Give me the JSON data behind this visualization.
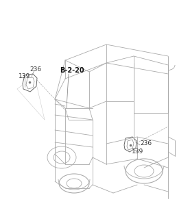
{
  "bg_color": "#ffffff",
  "lc": "#aaaaaa",
  "dc": "#888888",
  "label_236_left": "236",
  "label_139_left": "139",
  "label_236_right": "236",
  "label_139_right": "139",
  "label_b220": "B-2-20",
  "lfs": 6.5,
  "bfs": 6.5,
  "lw": 0.6
}
